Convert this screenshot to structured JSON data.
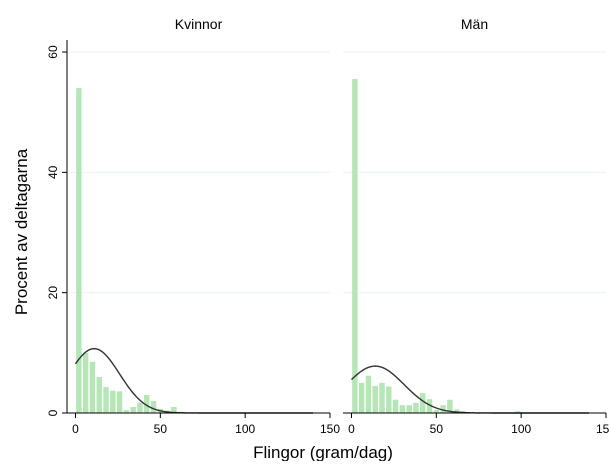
{
  "chart_data": {
    "type": "bar",
    "ylabel": "Procent av deltagarna",
    "xlabel": "Flingor (gram/dag)",
    "xlim": [
      -5,
      150
    ],
    "ylim": [
      0,
      62
    ],
    "xticks": [
      0,
      50,
      100,
      150
    ],
    "yticks": [
      0,
      20,
      40,
      60
    ],
    "bin_width": 4,
    "bar_color": "#b5e6b5",
    "curve_color": "#333333",
    "grid": "horizontal",
    "panels": [
      {
        "title": "Kvinnor",
        "bins_start": [
          0,
          4,
          8,
          12,
          16,
          20,
          24,
          28,
          32,
          36,
          40,
          44,
          48,
          52,
          56,
          60
        ],
        "values": [
          54,
          10,
          8.5,
          6,
          4.3,
          3.7,
          3.6,
          0.5,
          1,
          1.7,
          3,
          2,
          0.7,
          0.4,
          1,
          0.2
        ],
        "normal_curve": {
          "mean": 11,
          "sd": 15,
          "scale": 10.7
        },
        "curve_range": [
          0,
          140
        ]
      },
      {
        "title": "Män",
        "bins_start": [
          0,
          4,
          8,
          12,
          16,
          20,
          24,
          28,
          32,
          36,
          40,
          44,
          48,
          52,
          56,
          60,
          64,
          96
        ],
        "values": [
          55.5,
          5,
          6.2,
          4.5,
          5,
          4.4,
          2.2,
          1.3,
          1.3,
          1.7,
          3.3,
          2.3,
          0.5,
          1.3,
          2.2,
          0.6,
          0.3,
          0.3
        ],
        "normal_curve": {
          "mean": 14,
          "sd": 17,
          "scale": 7.8
        },
        "curve_range": [
          0,
          140
        ]
      }
    ]
  }
}
